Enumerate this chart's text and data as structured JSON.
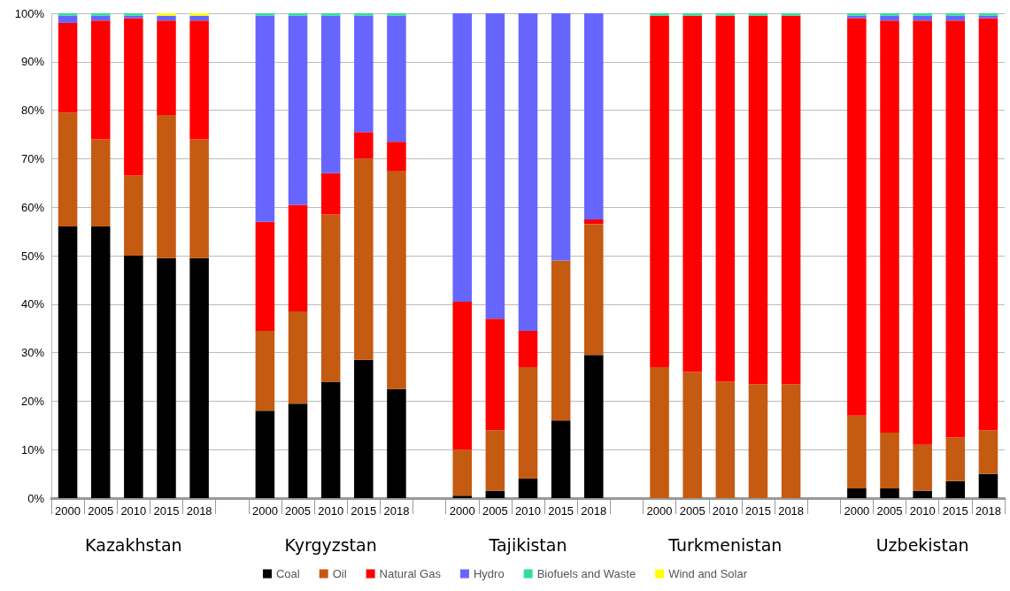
{
  "chart_data": {
    "type": "bar",
    "stacked": true,
    "categories": [
      "2000",
      "2005",
      "2010",
      "2015",
      "2018",
      null,
      "2000",
      "2005",
      "2010",
      "2015",
      "2018",
      null,
      "2000",
      "2005",
      "2010",
      "2015",
      "2018",
      null,
      "2000",
      "2005",
      "2010",
      "2015",
      "2018",
      null,
      "2000",
      "2005",
      "2010",
      "2015",
      "2018"
    ],
    "series": [
      {
        "name": "Coal",
        "color": "#000000",
        "values": [
          56,
          56,
          50,
          49.5,
          49.5,
          null,
          18,
          19.5,
          24,
          28.5,
          22.5,
          null,
          0.5,
          1.5,
          4,
          16,
          29.5,
          null,
          0,
          0,
          0,
          0,
          0,
          null,
          2,
          2,
          1.5,
          3.5,
          5
        ]
      },
      {
        "name": "Oil",
        "color": "#c55a11",
        "values": [
          23.5,
          18,
          16.5,
          29.5,
          24.5,
          null,
          16.5,
          19,
          34.5,
          41.5,
          45,
          null,
          9.5,
          12.5,
          23,
          33,
          27,
          null,
          27,
          26,
          24,
          23.5,
          23.5,
          null,
          15,
          11.5,
          9.5,
          9,
          9
        ]
      },
      {
        "name": "Natural Gas",
        "color": "#ff0000",
        "values": [
          18.5,
          24.5,
          32.5,
          19.5,
          24.5,
          null,
          22.5,
          22,
          8.5,
          5.5,
          6,
          null,
          30.5,
          23,
          7.5,
          0,
          1,
          null,
          72.5,
          73.5,
          75.5,
          76,
          76,
          null,
          82,
          85,
          87.5,
          86,
          85
        ]
      },
      {
        "name": "Hydro",
        "color": "#6666ff",
        "values": [
          1.5,
          1,
          0.5,
          1,
          1,
          null,
          42.5,
          39,
          32.5,
          24,
          26,
          null,
          59.5,
          63,
          65.5,
          51,
          42.5,
          null,
          0,
          0,
          0,
          0,
          0,
          null,
          0.5,
          1,
          1,
          1,
          0.5
        ]
      },
      {
        "name": "Biofuels and Waste",
        "color": "#33dd99",
        "values": [
          0.5,
          0.5,
          0.5,
          0,
          0,
          null,
          0.5,
          0.5,
          0.5,
          0.5,
          0.5,
          null,
          0,
          0,
          0,
          0,
          0,
          null,
          0.5,
          0.5,
          0.5,
          0.5,
          0.5,
          null,
          0.5,
          0.5,
          0.5,
          0.5,
          0.5
        ]
      },
      {
        "name": "Wind and Solar",
        "color": "#ffff00",
        "values": [
          0,
          0,
          0,
          0.5,
          0.5,
          null,
          0,
          0,
          0,
          0,
          0,
          null,
          0,
          0,
          0,
          0,
          0,
          null,
          0,
          0,
          0,
          0,
          0,
          null,
          0,
          0,
          0,
          0,
          0
        ]
      }
    ],
    "ylim": [
      0,
      100
    ],
    "yticks": [
      {
        "value": 0,
        "label": "0%"
      },
      {
        "value": 10,
        "label": "10%"
      },
      {
        "value": 20,
        "label": "20%"
      },
      {
        "value": 30,
        "label": "30%"
      },
      {
        "value": 40,
        "label": "40%"
      },
      {
        "value": 50,
        "label": "50%"
      },
      {
        "value": 60,
        "label": "60%"
      },
      {
        "value": 70,
        "label": "70%"
      },
      {
        "value": 80,
        "label": "80%"
      },
      {
        "value": 90,
        "label": "90%"
      },
      {
        "value": 100,
        "label": "100%"
      }
    ],
    "grid": "y",
    "legend": "bottom",
    "annotations": [
      "Kazakhstan",
      "Kyrgyzstan",
      "Tajikistan",
      "Turkmenistan",
      "Uzbekistan"
    ]
  }
}
